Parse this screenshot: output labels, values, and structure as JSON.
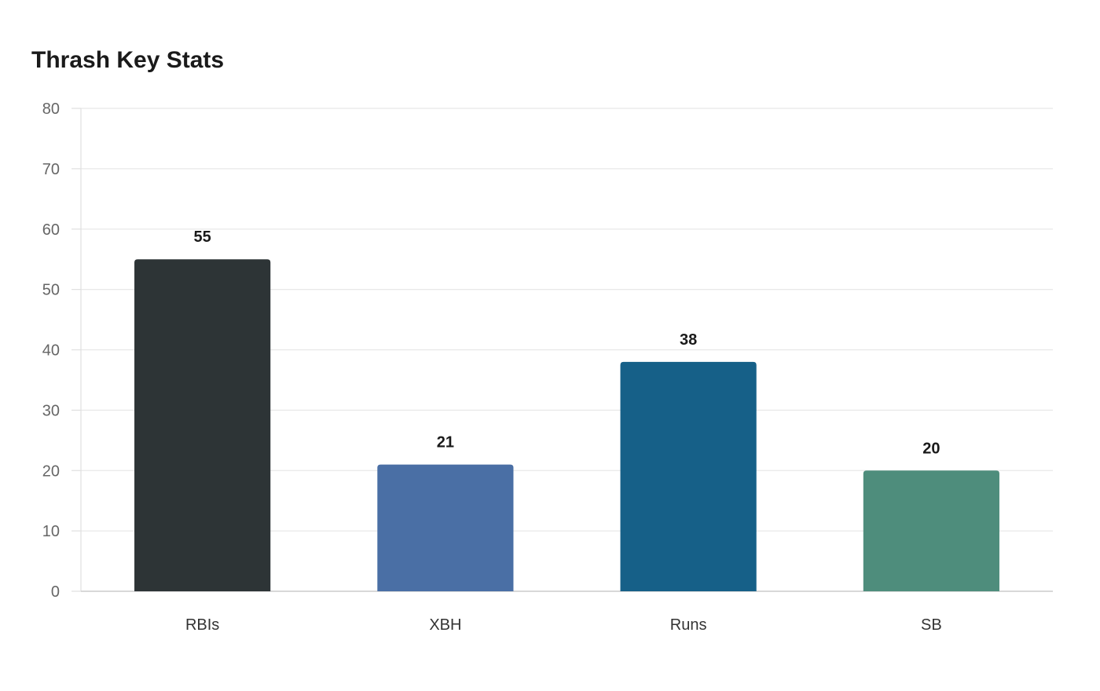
{
  "chart_data": {
    "type": "bar",
    "title": "Thrash Key Stats",
    "xlabel": "",
    "ylabel": "",
    "categories": [
      "RBIs",
      "XBH",
      "Runs",
      "SB"
    ],
    "values": [
      55,
      21,
      38,
      20
    ],
    "colors": [
      "#2d3436",
      "#4a6fa5",
      "#166088",
      "#4e8d7c"
    ],
    "ylim": [
      0,
      80
    ],
    "yticks": [
      0,
      10,
      20,
      30,
      40,
      50,
      60,
      70,
      80
    ],
    "grid": true,
    "legend": "none",
    "data_labels": true
  }
}
